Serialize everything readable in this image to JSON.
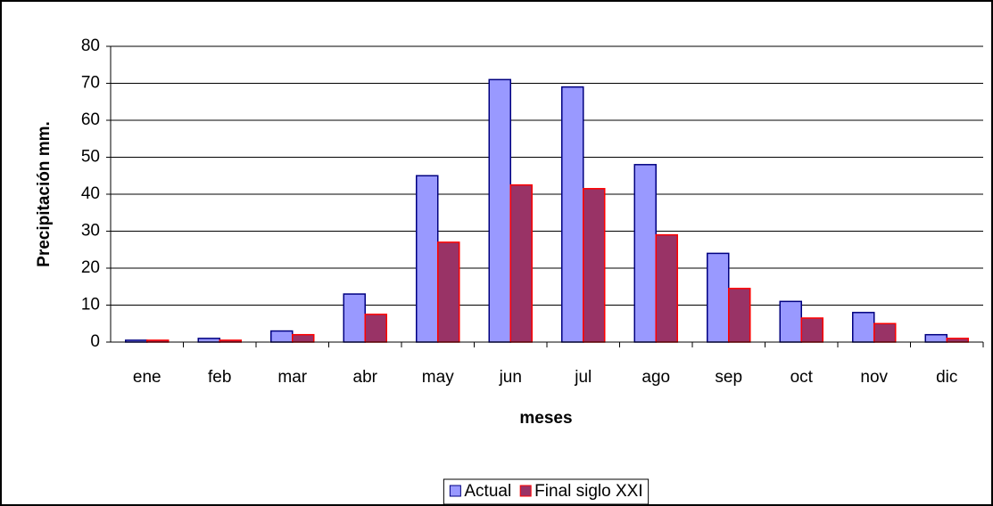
{
  "chart_data": {
    "type": "bar",
    "x_label": "meses",
    "y_label": "Precipitación mm.",
    "categories": [
      "ene",
      "feb",
      "mar",
      "abr",
      "may",
      "jun",
      "jul",
      "ago",
      "sep",
      "oct",
      "nov",
      "dic"
    ],
    "series": [
      {
        "name": "Actual",
        "color": "#9999ff",
        "edgecolor": "#000080",
        "values": [
          0.5,
          1,
          3,
          13,
          45,
          71,
          69,
          48,
          24,
          11,
          8,
          2
        ]
      },
      {
        "name": "Final siglo XXI",
        "color": "#993366",
        "edgecolor": "#ff0000",
        "values": [
          0.5,
          0.5,
          2,
          7.5,
          27,
          42.5,
          41.5,
          29,
          14.5,
          6.5,
          5,
          1
        ]
      }
    ],
    "ylim": [
      0,
      80
    ],
    "yticks": [
      0,
      10,
      20,
      30,
      40,
      50,
      60,
      70,
      80
    ],
    "grid": true,
    "legend": "bottom"
  }
}
